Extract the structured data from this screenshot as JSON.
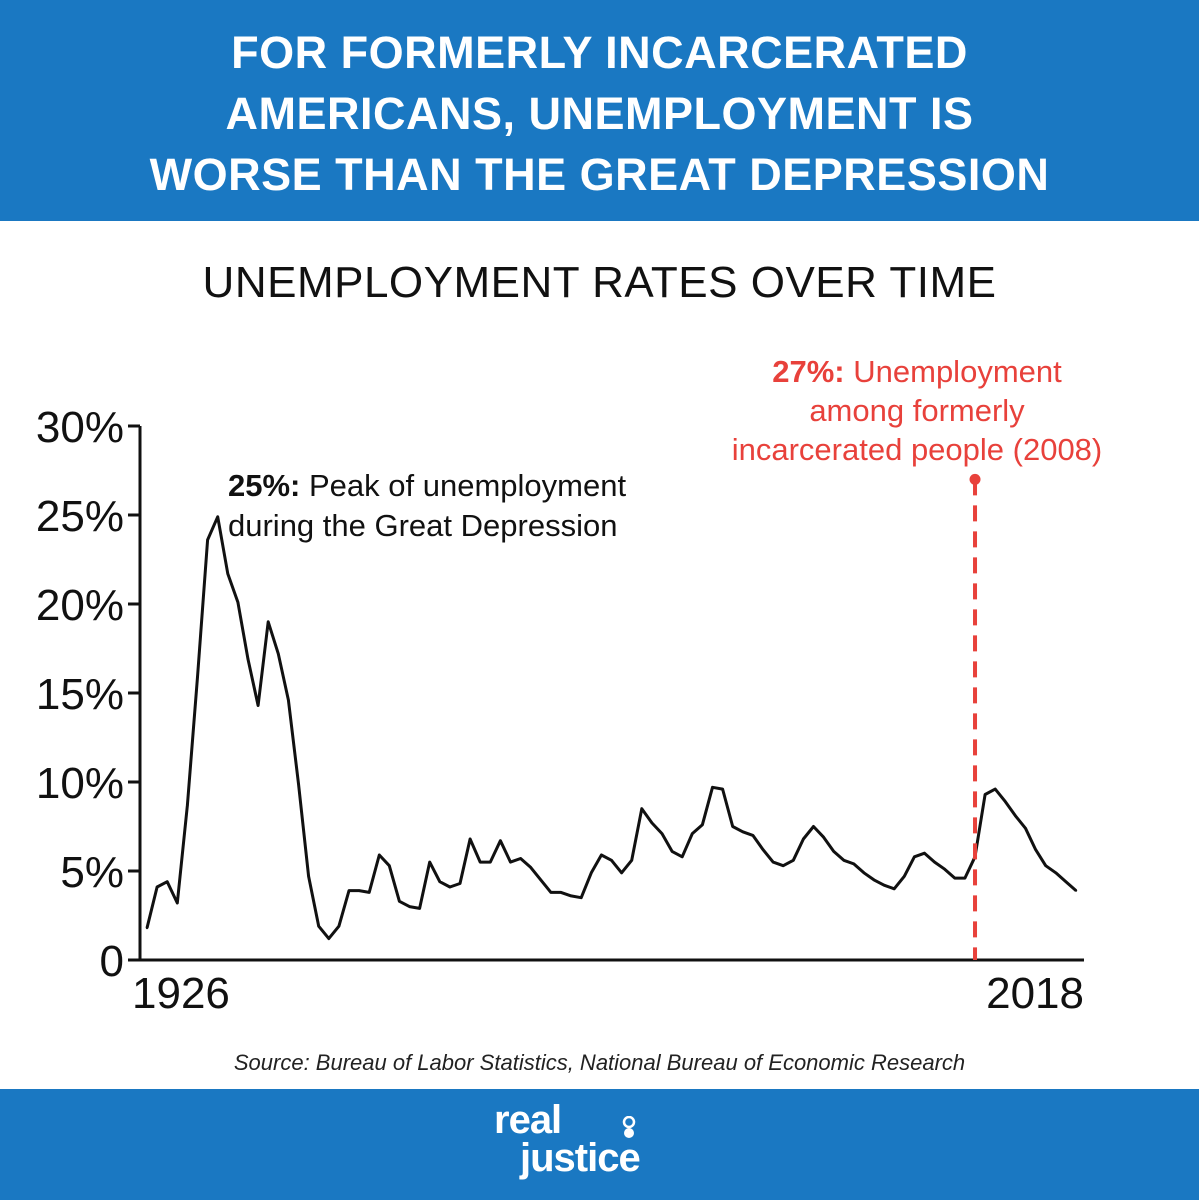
{
  "header": {
    "headline_lines": [
      "FOR FORMERLY INCARCERATED",
      "AMERICANS, UNEMPLOYMENT IS",
      "WORSE THAN THE GREAT DEPRESSION"
    ],
    "background_color": "#1a78c2"
  },
  "chart_data": {
    "type": "line",
    "title": "UNEMPLOYMENT RATES OVER TIME",
    "xlabel": "",
    "ylabel": "",
    "xlim": [
      1926,
      2018
    ],
    "ylim": [
      0,
      30
    ],
    "x_tick_labels": [
      "1926",
      "2018"
    ],
    "y_ticks": [
      0,
      5,
      10,
      15,
      20,
      25,
      30
    ],
    "y_tick_labels": [
      "0",
      "5%",
      "10%",
      "15%",
      "20%",
      "25%",
      "30%"
    ],
    "grid": false,
    "legend": "none",
    "line_color": "#111111",
    "x": [
      1926,
      1927,
      1928,
      1929,
      1930,
      1931,
      1932,
      1933,
      1934,
      1935,
      1936,
      1937,
      1938,
      1939,
      1940,
      1941,
      1942,
      1943,
      1944,
      1945,
      1946,
      1947,
      1948,
      1949,
      1950,
      1951,
      1952,
      1953,
      1954,
      1955,
      1956,
      1957,
      1958,
      1959,
      1960,
      1961,
      1962,
      1963,
      1964,
      1965,
      1966,
      1967,
      1968,
      1969,
      1970,
      1971,
      1972,
      1973,
      1974,
      1975,
      1976,
      1977,
      1978,
      1979,
      1980,
      1981,
      1982,
      1983,
      1984,
      1985,
      1986,
      1987,
      1988,
      1989,
      1990,
      1991,
      1992,
      1993,
      1994,
      1995,
      1996,
      1997,
      1998,
      1999,
      2000,
      2001,
      2002,
      2003,
      2004,
      2005,
      2006,
      2007,
      2008,
      2009,
      2010,
      2011,
      2012,
      2013,
      2014,
      2015,
      2016,
      2017,
      2018
    ],
    "values": [
      1.8,
      4.1,
      4.4,
      3.2,
      8.7,
      15.9,
      23.6,
      24.9,
      21.7,
      20.1,
      16.9,
      14.3,
      19.0,
      17.2,
      14.6,
      9.9,
      4.7,
      1.9,
      1.2,
      1.9,
      3.9,
      3.9,
      3.8,
      5.9,
      5.3,
      3.3,
      3.0,
      2.9,
      5.5,
      4.4,
      4.1,
      4.3,
      6.8,
      5.5,
      5.5,
      6.7,
      5.5,
      5.7,
      5.2,
      4.5,
      3.8,
      3.8,
      3.6,
      3.5,
      4.9,
      5.9,
      5.6,
      4.9,
      5.6,
      8.5,
      7.7,
      7.1,
      6.1,
      5.8,
      7.1,
      7.6,
      9.7,
      9.6,
      7.5,
      7.2,
      7.0,
      6.2,
      5.5,
      5.3,
      5.6,
      6.8,
      7.5,
      6.9,
      6.1,
      5.6,
      5.4,
      4.9,
      4.5,
      4.2,
      4.0,
      4.7,
      5.8,
      6.0,
      5.5,
      5.1,
      4.6,
      4.6,
      5.8,
      9.3,
      9.6,
      8.9,
      8.1,
      7.4,
      6.2,
      5.3,
      4.9,
      4.4,
      3.9
    ],
    "annotations": [
      {
        "value_label": "25%:",
        "lines": [
          " Peak of unemployment",
          "during the Great Depression"
        ],
        "year": 1933,
        "value": 24.9,
        "color": "#111111"
      },
      {
        "value_label": "27%:",
        "lines": [
          " Unemployment",
          "among formerly",
          "incarcerated people (2008)"
        ],
        "year": 2008,
        "value": 27,
        "color": "#e8413b"
      }
    ]
  },
  "source": "Source: Bureau of Labor Statistics, National Bureau of Economic Research",
  "logo": {
    "word1": "real",
    "word2": "justice"
  }
}
